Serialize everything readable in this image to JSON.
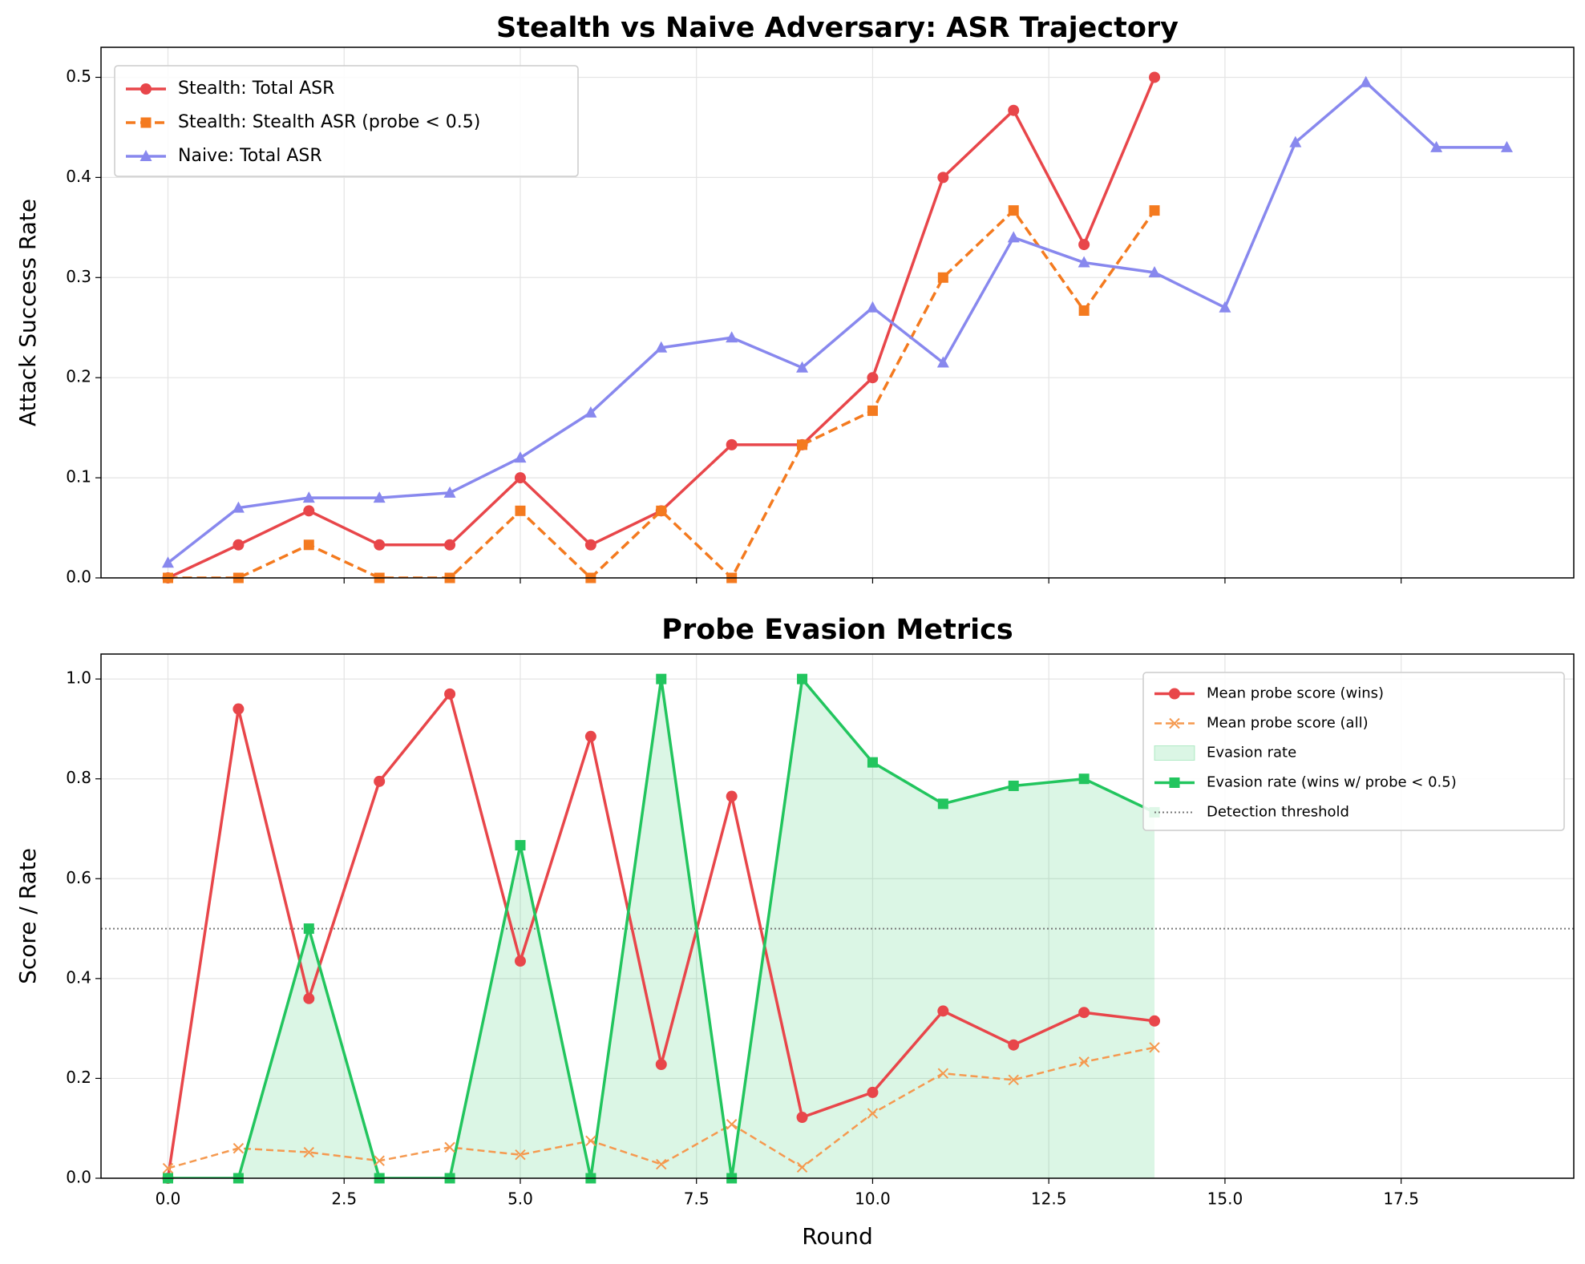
{
  "chart_data": [
    {
      "type": "line",
      "title": "Stealth vs Naive Adversary: ASR Trajectory",
      "ylabel": "Attack Success Rate",
      "xlim": [
        -0.95,
        19.95
      ],
      "ylim": [
        0,
        0.53
      ],
      "grid": true,
      "legend": "upper left",
      "xtick_labels": false,
      "xticks": [
        0,
        2.5,
        5,
        7.5,
        10,
        12.5,
        15,
        17.5
      ],
      "yticks": [
        {
          "value": 0,
          "label": "0.0"
        },
        0.1,
        0.2,
        0.3,
        0.4,
        0.5
      ],
      "series": [
        {
          "name": "Stealth: Total ASR",
          "color": "#e8464a",
          "marker": "circle",
          "dash": "solid",
          "x": [
            0,
            1,
            2,
            3,
            4,
            5,
            6,
            7,
            8,
            9,
            10,
            11,
            12,
            13,
            14
          ],
          "values": [
            0,
            0.033,
            0.067,
            0.033,
            0.033,
            0.1,
            0.033,
            0.067,
            0.133,
            0.133,
            0.2,
            0.4,
            0.467,
            0.333,
            0.5
          ]
        },
        {
          "name": "Stealth: Stealth ASR (probe < 0.5)",
          "color": "#f47a1f",
          "marker": "square",
          "dash": "dashed",
          "x": [
            0,
            1,
            2,
            3,
            4,
            5,
            6,
            7,
            8,
            9,
            10,
            11,
            12,
            13,
            14
          ],
          "values": [
            0,
            0,
            0.033,
            0,
            0,
            0.067,
            0,
            0.067,
            0,
            0.133,
            0.167,
            0.3,
            0.367,
            0.267,
            0.367
          ]
        },
        {
          "name": "Naive: Total ASR",
          "color": "#8888ee",
          "marker": "triangle",
          "dash": "solid",
          "x": [
            0,
            1,
            2,
            3,
            4,
            5,
            6,
            7,
            8,
            9,
            10,
            11,
            12,
            13,
            14,
            15,
            16,
            17,
            18,
            19
          ],
          "values": [
            0.015,
            0.07,
            0.08,
            0.08,
            0.085,
            0.12,
            0.165,
            0.23,
            0.24,
            0.21,
            0.27,
            0.215,
            0.34,
            0.315,
            0.305,
            0.27,
            0.435,
            0.495,
            0.43,
            0.43
          ]
        }
      ]
    },
    {
      "type": "line",
      "title": "Probe Evasion Metrics",
      "ylabel": "Score / Rate",
      "xlabel": "Round",
      "xlim": [
        -0.95,
        19.95
      ],
      "ylim": [
        0,
        1.05
      ],
      "grid": true,
      "legend": "upper right",
      "xtick_labels": true,
      "xticks": [
        {
          "value": 0,
          "label": "0.0"
        },
        2.5,
        {
          "value": 5,
          "label": "5.0"
        },
        7.5,
        {
          "value": 10,
          "label": "10.0"
        },
        12.5,
        {
          "value": 15,
          "label": "15.0"
        },
        17.5
      ],
      "yticks": [
        {
          "value": 0,
          "label": "0.0"
        },
        0.2,
        0.4,
        0.6,
        0.8,
        {
          "value": 1,
          "label": "1.0"
        }
      ],
      "series": [
        {
          "name": "Mean probe score (wins)",
          "color": "#e8464a",
          "marker": "circle",
          "dash": "solid",
          "x": [
            0,
            1,
            2,
            3,
            4,
            5,
            6,
            7,
            8,
            9,
            10,
            11,
            12,
            13,
            14
          ],
          "values": [
            0,
            0.94,
            0.36,
            0.795,
            0.97,
            0.435,
            0.885,
            0.228,
            0.765,
            0.122,
            0.172,
            0.335,
            0.267,
            0.332,
            0.315
          ]
        },
        {
          "name": "Mean probe score (all)",
          "color": "#f5994f",
          "marker": "x",
          "dash": "dashed",
          "x": [
            0,
            1,
            2,
            3,
            4,
            5,
            6,
            7,
            8,
            9,
            10,
            11,
            12,
            13,
            14
          ],
          "values": [
            0.02,
            0.06,
            0.052,
            0.035,
            0.062,
            0.047,
            0.075,
            0.028,
            0.108,
            0.022,
            0.13,
            0.21,
            0.197,
            0.233,
            0.262
          ]
        },
        {
          "name": "Evasion rate (wins w/ probe < 0.5)",
          "area_name": "Evasion rate",
          "color": "#22c55e",
          "marker": "square",
          "dash": "solid",
          "x": [
            0,
            1,
            2,
            3,
            4,
            5,
            6,
            7,
            8,
            9,
            10,
            11,
            12,
            13,
            14
          ],
          "values": [
            0,
            0,
            0.5,
            0,
            0,
            0.667,
            0,
            1,
            0,
            1,
            0.833,
            0.75,
            0.786,
            0.8,
            0.733
          ]
        }
      ],
      "hlines": [
        {
          "name": "Detection threshold",
          "y": 0.5,
          "color": "#777777"
        }
      ]
    }
  ]
}
